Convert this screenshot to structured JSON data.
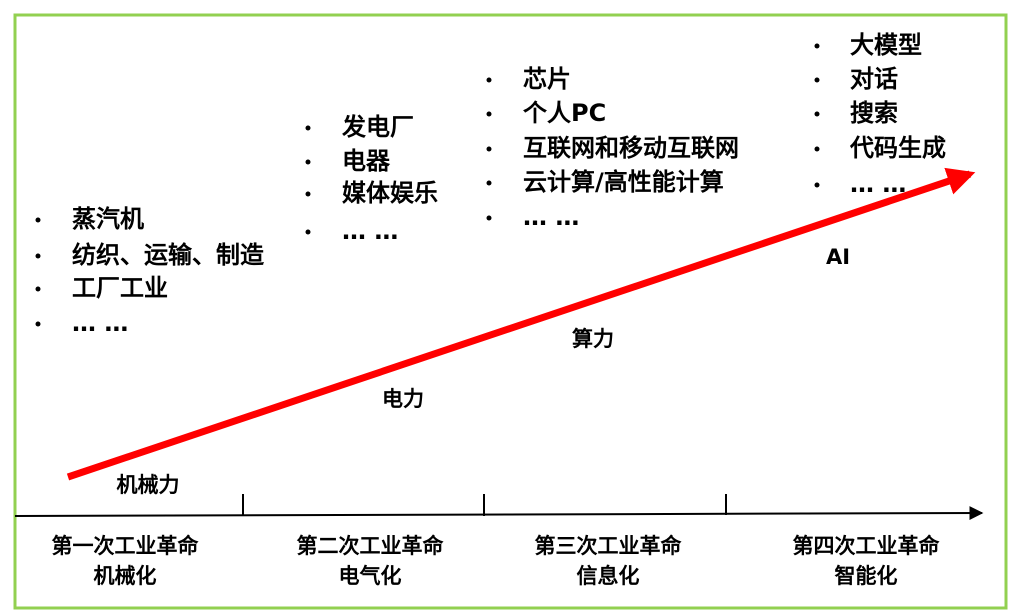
{
  "eras": [
    {
      "title": "第一次工业革命",
      "subtitle": "机械化",
      "power": "机械力",
      "items": [
        "蒸汽机",
        "纺织、运输、制造",
        "工厂工业",
        "… …"
      ]
    },
    {
      "title": "第二次工业革命",
      "subtitle": "电气化",
      "power": "电力",
      "items": [
        "发电厂",
        "电器",
        "媒体娱乐",
        "… …"
      ]
    },
    {
      "title": "第三次工业革命",
      "subtitle": "信息化",
      "power": "算力",
      "items": [
        "芯片",
        "个人PC",
        "互联网和移动互联网",
        "云计算/高性能计算",
        "… …"
      ]
    },
    {
      "title": "第四次工业革命",
      "subtitle": "智能化",
      "power": "AI",
      "items": [
        "大模型",
        "对话",
        "搜索",
        "代码生成",
        "… …"
      ]
    }
  ]
}
